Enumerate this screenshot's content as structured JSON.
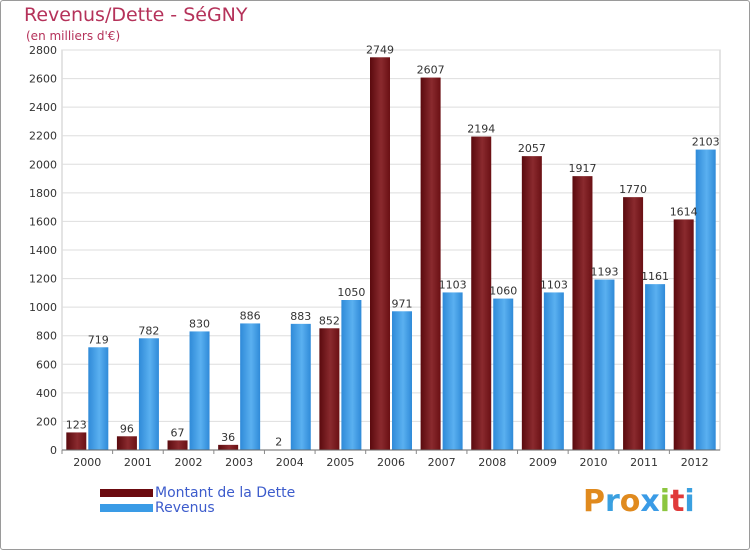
{
  "header": {
    "title": "Revenus/Dette - SéGNY",
    "subtitle": "(en milliers d'€)"
  },
  "legend": {
    "items": [
      {
        "label": "Montant de la Dette",
        "color": "#6b0a0f"
      },
      {
        "label": "Revenus",
        "color": "#3a9be6"
      }
    ]
  },
  "logo": {
    "text": "Proxiti",
    "letters": [
      "P",
      "r",
      "o",
      "x",
      "i",
      "t",
      "i"
    ],
    "colors": [
      "#e08a1e",
      "#3aa0e0",
      "#e08a1e",
      "#3a9be6",
      "#8cc63f",
      "#e03a3a",
      "#3aa0e0"
    ]
  },
  "chart_data": {
    "type": "bar",
    "title": "Revenus/Dette - SéGNY",
    "subtitle": "(en milliers d'€)",
    "categories": [
      "2000",
      "2001",
      "2002",
      "2003",
      "2004",
      "2005",
      "2006",
      "2007",
      "2008",
      "2009",
      "2010",
      "2011",
      "2012"
    ],
    "series": [
      {
        "name": "Montant de la Dette",
        "color": "#7a1a1e",
        "values": [
          123,
          96,
          67,
          36,
          2,
          852,
          2749,
          2607,
          2194,
          2057,
          1917,
          1770,
          1614
        ]
      },
      {
        "name": "Revenus",
        "color": "#3a9be6",
        "values": [
          719,
          782,
          830,
          886,
          883,
          1050,
          971,
          1103,
          1060,
          1103,
          1193,
          1161,
          2103
        ]
      }
    ],
    "ylim": [
      0,
      2800
    ],
    "yticks": [
      0,
      200,
      400,
      600,
      800,
      1000,
      1200,
      1400,
      1600,
      1800,
      2000,
      2200,
      2400,
      2600,
      2800
    ],
    "grid": true,
    "legend_position": "bottom-left"
  }
}
